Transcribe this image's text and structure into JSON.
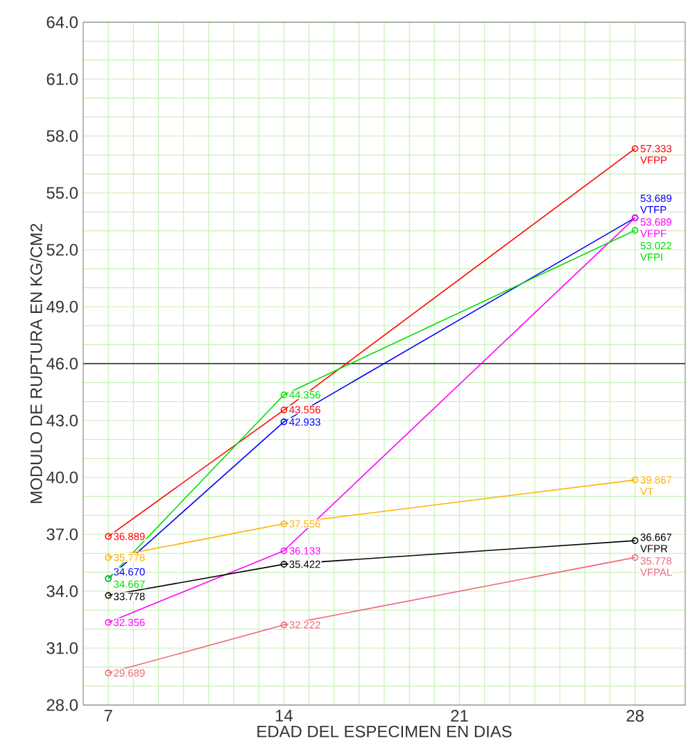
{
  "chart_data": {
    "type": "line",
    "xlabel": "EDAD DEL ESPECIMEN EN DIAS",
    "ylabel": "MODULO DE RUPTURA EN KG/CM2",
    "x": [
      7,
      14,
      28
    ],
    "xlim": [
      6,
      30
    ],
    "xticks": [
      7,
      14,
      21,
      28
    ],
    "ylim": [
      28,
      64
    ],
    "yticks": [
      {
        "value": 28,
        "label": "28.0"
      },
      {
        "value": 31,
        "label": "31.0"
      },
      {
        "value": 34,
        "label": "34.0"
      },
      {
        "value": 37,
        "label": "37.0"
      },
      {
        "value": 40,
        "label": "40.0"
      },
      {
        "value": 43,
        "label": "43.0"
      },
      {
        "value": 46,
        "label": "46.0"
      },
      {
        "value": 49,
        "label": "49.0"
      },
      {
        "value": 52,
        "label": "52.0"
      },
      {
        "value": 55,
        "label": "55.0"
      },
      {
        "value": 58,
        "label": "58.0"
      },
      {
        "value": 61,
        "label": "61.0"
      },
      {
        "value": 64,
        "label": "64.0"
      }
    ],
    "grid": true,
    "legend": false,
    "marker": "circle",
    "line_style": "solid",
    "ref_lines": [
      {
        "axis": "y",
        "value": 46,
        "color": "#555555"
      }
    ],
    "series": [
      {
        "name": "VFPP",
        "color": "#ff0000",
        "values": [
          36.889,
          43.556,
          57.333
        ],
        "value_labels": [
          "36.889",
          "43.556",
          "57.333"
        ]
      },
      {
        "name": "VTFP",
        "color": "#0000ff",
        "values": [
          34.67,
          42.933,
          53.689
        ],
        "value_labels": [
          "34.670",
          "42.933",
          "53.689"
        ]
      },
      {
        "name": "VFPF",
        "color": "#ff00ff",
        "values": [
          32.356,
          36.133,
          53.689
        ],
        "value_labels": [
          "32.356",
          "36.133",
          "53.689"
        ]
      },
      {
        "name": "VFPI",
        "color": "#00dd00",
        "values": [
          34.667,
          44.356,
          53.022
        ],
        "value_labels": [
          "34.667",
          "44.356",
          "53.022"
        ]
      },
      {
        "name": "VT",
        "color": "#ffb000",
        "values": [
          35.778,
          37.556,
          39.867
        ],
        "value_labels": [
          "35.778",
          "37.556",
          "39.867"
        ]
      },
      {
        "name": "VFPR",
        "color": "#000000",
        "values": [
          33.778,
          35.422,
          36.667
        ],
        "value_labels": [
          "33.778",
          "35.422",
          "36.667"
        ]
      },
      {
        "name": "VFPAL",
        "color": "#ee6677",
        "values": [
          29.689,
          32.222,
          35.778
        ],
        "value_labels": [
          "29.689",
          "32.222",
          "35.778"
        ]
      }
    ]
  }
}
